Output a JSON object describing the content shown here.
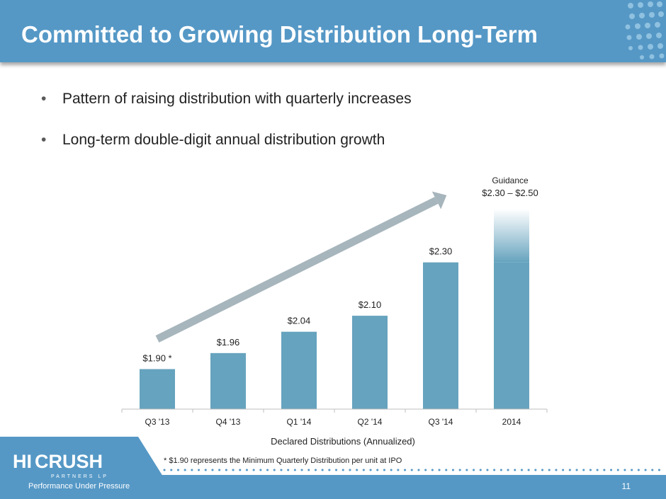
{
  "header": {
    "title": "Committed to Growing Distribution Long-Term"
  },
  "bullets": [
    "Pattern of raising distribution with quarterly increases",
    "Long-term double-digit annual distribution growth"
  ],
  "chart_data": {
    "type": "bar",
    "title": "",
    "xlabel": "Declared Distributions (Annualized)",
    "ylabel": "",
    "categories": [
      "Q3 '13",
      "Q4 '13",
      "Q1 '14",
      "Q2 '14",
      "Q3 '14",
      "2014"
    ],
    "values": [
      1.9,
      1.96,
      2.04,
      2.1,
      2.3,
      2.5
    ],
    "labels": [
      "$1.90",
      "$1.96",
      "$2.04",
      "$2.10",
      "$2.30",
      ""
    ],
    "ylim": [
      1.75,
      2.53
    ],
    "guidance": {
      "title": "Guidance",
      "range_text": "$2.30 – $2.50",
      "low": 2.3,
      "high": 2.5
    },
    "first_bar_marker": "*",
    "trend_arrow": true,
    "bar_color": "#66a3be"
  },
  "footnote": "* $1.90 represents the Minimum Quarterly Distribution per unit at IPO",
  "logo": {
    "name_hi": "HI",
    "name_crush": "CRUSH",
    "sub": "PARTNERS LP",
    "tagline": "Performance Under Pressure"
  },
  "page_number": "11",
  "colors": {
    "header": "#5598c6",
    "bar": "#66a3be",
    "arrow": "#a7b5bc"
  }
}
